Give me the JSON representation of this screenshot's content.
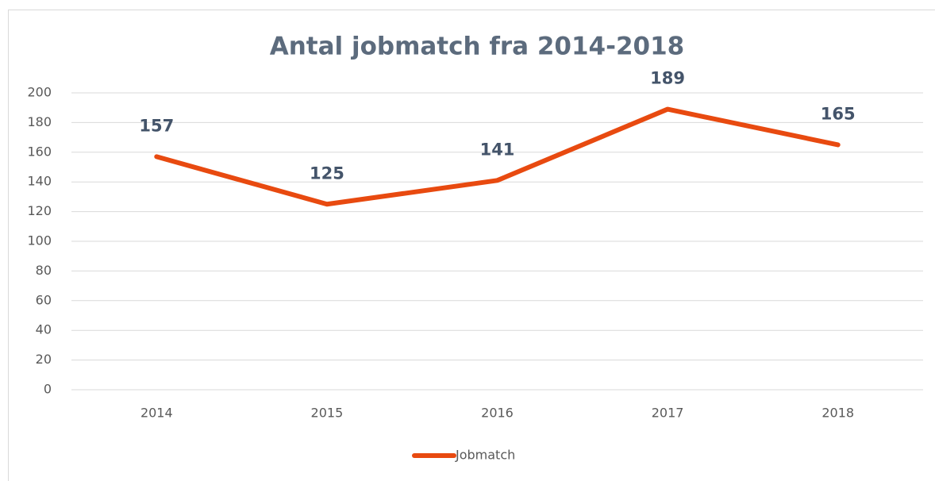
{
  "chart_data": {
    "type": "line",
    "title": "Antal jobmatch fra 2014-2018",
    "categories": [
      "2014",
      "2015",
      "2016",
      "2017",
      "2018"
    ],
    "series": [
      {
        "name": "Jobmatch",
        "color": "#e84a10",
        "values": [
          157,
          125,
          141,
          189,
          165
        ]
      }
    ],
    "ylim": [
      0,
      200
    ],
    "yticks": [
      0,
      20,
      40,
      60,
      80,
      100,
      120,
      140,
      160,
      180,
      200
    ],
    "grid": true,
    "data_labels": true,
    "legend": "bottom"
  }
}
